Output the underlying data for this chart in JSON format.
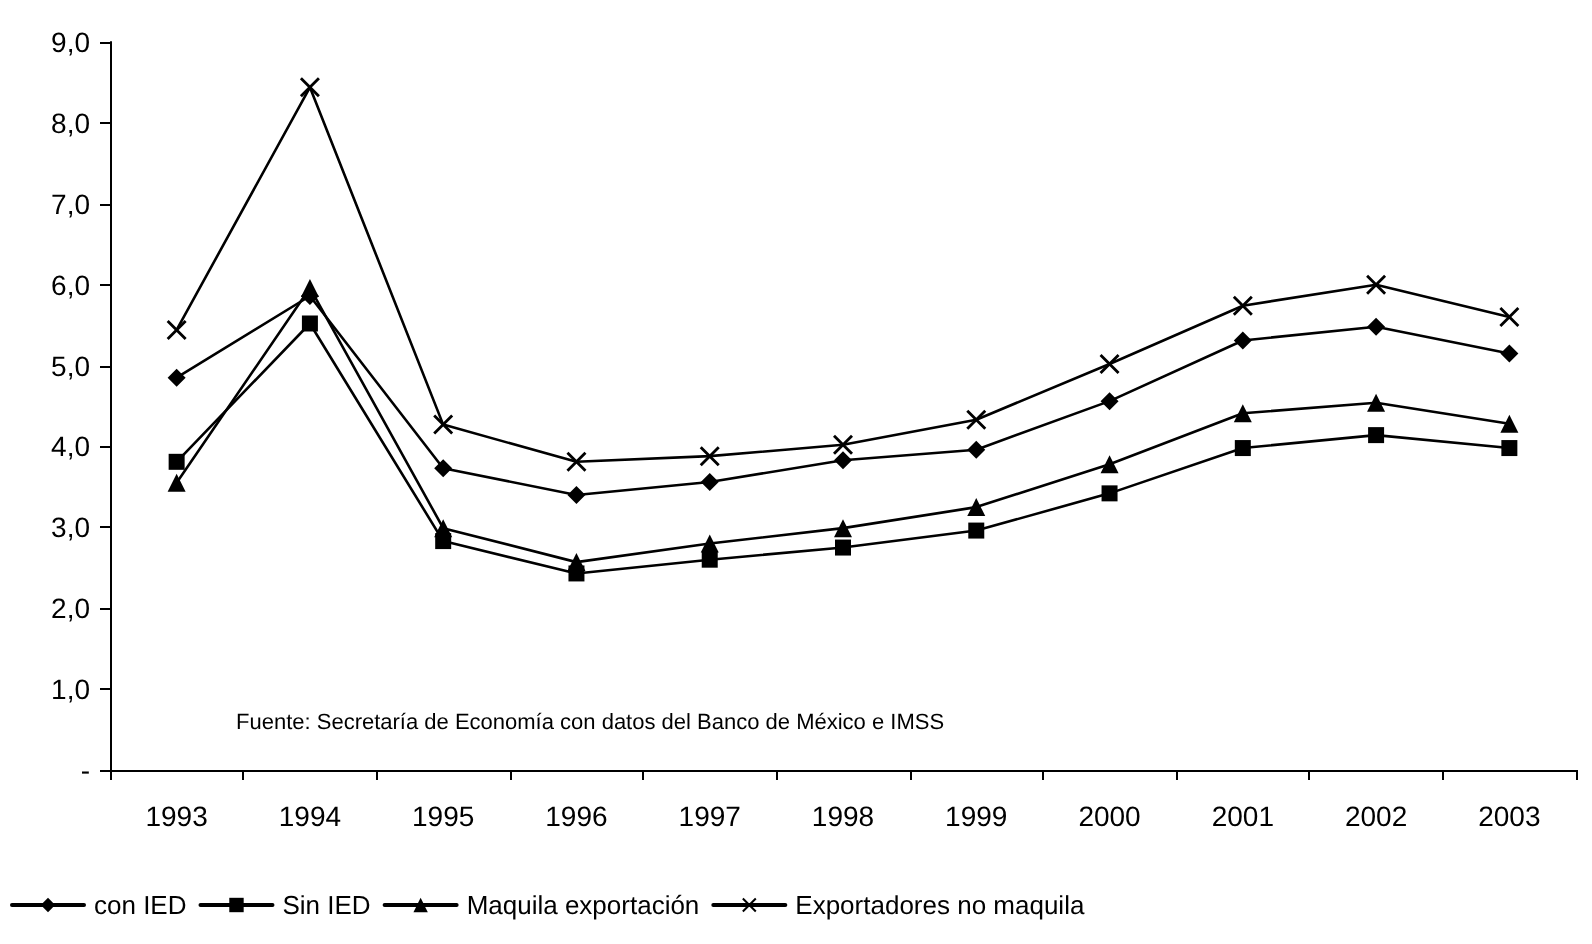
{
  "chart_data": {
    "type": "line",
    "categories": [
      "1993",
      "1994",
      "1995",
      "1996",
      "1997",
      "1998",
      "1999",
      "2000",
      "2001",
      "2002",
      "2003"
    ],
    "series": [
      {
        "name": "con IED",
        "color": "#000000",
        "marker": "diamond",
        "values": [
          4.85,
          5.86,
          3.73,
          3.4,
          3.56,
          3.83,
          3.96,
          4.56,
          5.31,
          5.48,
          5.15
        ]
      },
      {
        "name": "Sin IED",
        "color": "#000000",
        "marker": "square",
        "values": [
          3.81,
          5.52,
          2.83,
          2.43,
          2.6,
          2.75,
          2.96,
          3.42,
          3.98,
          4.14,
          3.98
        ]
      },
      {
        "name": "Maquila exportación",
        "color": "#000000",
        "marker": "triangle",
        "values": [
          3.55,
          5.96,
          2.99,
          2.57,
          2.8,
          2.99,
          3.25,
          3.78,
          4.41,
          4.54,
          4.28
        ]
      },
      {
        "name": "Exportadores no maquila",
        "color": "#000000",
        "marker": "cross",
        "values": [
          5.44,
          8.44,
          4.27,
          3.81,
          3.88,
          4.02,
          4.33,
          5.02,
          5.74,
          6.0,
          5.6
        ]
      }
    ],
    "ylim": [
      0,
      9
    ],
    "yticks": [
      {
        "value": 0,
        "label": "-"
      },
      {
        "value": 1,
        "label": "1,0"
      },
      {
        "value": 2,
        "label": "2,0"
      },
      {
        "value": 3,
        "label": "3,0"
      },
      {
        "value": 4,
        "label": "4,0"
      },
      {
        "value": 5,
        "label": "5,0"
      },
      {
        "value": 6,
        "label": "6,0"
      },
      {
        "value": 7,
        "label": "7,0"
      },
      {
        "value": 8,
        "label": "8,0"
      },
      {
        "value": 9,
        "label": "9,0"
      }
    ],
    "grid": false,
    "legend": "bottom",
    "line_style": "solid",
    "annotations": [
      "Fuente: Secretaría de Economía con datos del Banco de México e IMSS"
    ]
  }
}
